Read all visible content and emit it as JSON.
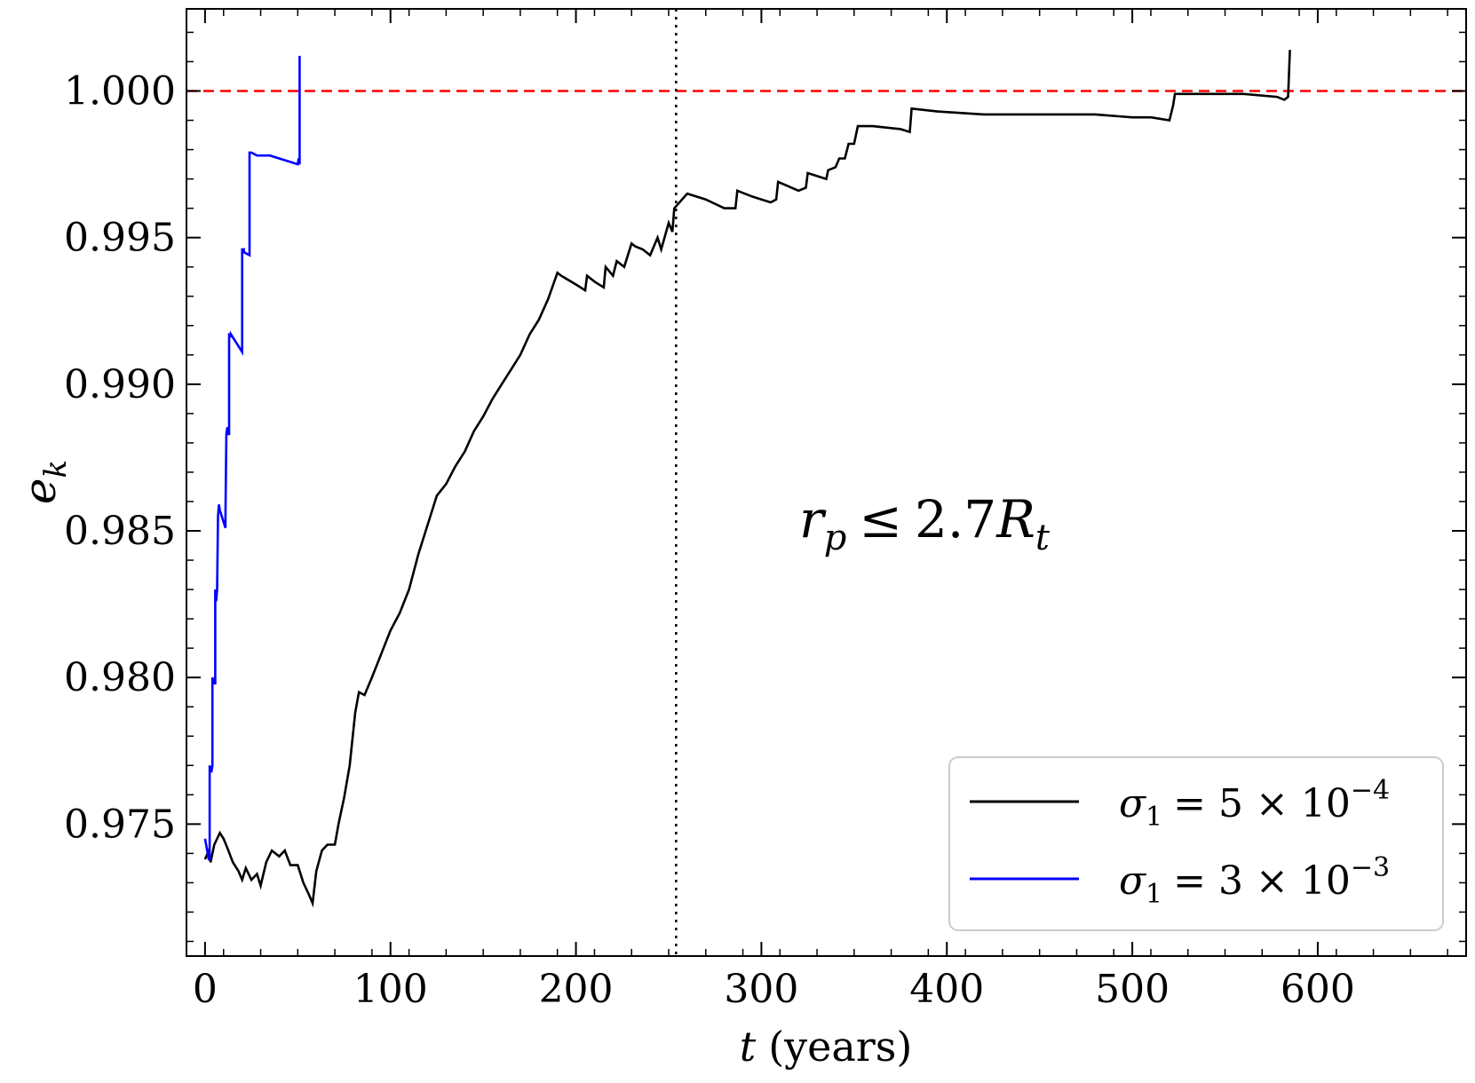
{
  "chart_data": {
    "type": "line",
    "xlabel_var": "t",
    "xlabel_unit": "(years)",
    "ylabel": "e",
    "ylabel_sub": "k",
    "xlim": [
      -10,
      680
    ],
    "ylim": [
      0.9705,
      1.0028
    ],
    "xticks": [
      0,
      100,
      200,
      300,
      400,
      500,
      600
    ],
    "xtick_labels": [
      "0",
      "100",
      "200",
      "300",
      "400",
      "500",
      "600"
    ],
    "yticks": [
      0.975,
      0.98,
      0.985,
      0.99,
      0.995,
      1.0
    ],
    "ytick_labels": [
      "0.975",
      "0.980",
      "0.985",
      "0.990",
      "0.995",
      "1.000"
    ],
    "reference_lines": [
      {
        "orientation": "horizontal",
        "value": 1.0,
        "color": "#ff0000",
        "style": "dashed"
      },
      {
        "orientation": "vertical",
        "value": 254,
        "color": "#000000",
        "style": "dotted"
      }
    ],
    "annotation": {
      "r": "r",
      "r_sub": "p",
      "relation": "≤",
      "coef": "2.7",
      "R": "R",
      "R_sub": "t"
    },
    "legend_position": "lower-right",
    "series": [
      {
        "name": "σ1 = 5 × 10^-4",
        "legend": {
          "sigma": "σ",
          "sub": "1",
          "eq": "= 5 × 10",
          "exp": "−4"
        },
        "color": "#000000",
        "x": [
          0,
          2,
          3,
          5,
          8,
          10,
          12,
          15,
          18,
          20,
          22,
          25,
          28,
          30,
          33,
          36,
          40,
          43,
          46,
          50,
          53,
          56,
          58,
          60,
          63,
          66,
          70,
          72,
          75,
          78,
          81,
          83,
          86,
          90,
          95,
          100,
          105,
          110,
          115,
          120,
          125,
          130,
          135,
          140,
          145,
          150,
          155,
          160,
          165,
          170,
          175,
          180,
          185,
          190,
          192,
          200,
          205,
          206,
          210,
          215,
          216,
          220,
          222,
          226,
          230,
          232,
          236,
          240,
          244,
          246,
          250,
          252,
          253,
          260,
          270,
          280,
          286,
          287,
          295,
          305,
          308,
          309,
          320,
          324,
          325,
          335,
          336,
          340,
          342,
          345,
          347,
          350,
          352,
          360,
          375,
          380,
          381,
          395,
          420,
          450,
          480,
          500,
          510,
          520,
          522,
          523,
          540,
          560,
          578,
          582,
          584,
          585
        ],
        "values": [
          0.9738,
          0.9741,
          0.9737,
          0.9743,
          0.9747,
          0.9745,
          0.9742,
          0.9737,
          0.9734,
          0.9731,
          0.9735,
          0.9731,
          0.9733,
          0.9729,
          0.9737,
          0.9741,
          0.9739,
          0.9741,
          0.9736,
          0.9736,
          0.973,
          0.9726,
          0.9723,
          0.9734,
          0.9741,
          0.9743,
          0.9743,
          0.975,
          0.9759,
          0.977,
          0.9788,
          0.9795,
          0.9794,
          0.98,
          0.9808,
          0.9816,
          0.9822,
          0.983,
          0.9842,
          0.9852,
          0.9862,
          0.9866,
          0.9872,
          0.9877,
          0.9884,
          0.9889,
          0.9895,
          0.99,
          0.9905,
          0.991,
          0.9917,
          0.9922,
          0.9929,
          0.9938,
          0.9937,
          0.9934,
          0.9932,
          0.9937,
          0.9935,
          0.9933,
          0.994,
          0.9937,
          0.9942,
          0.994,
          0.9948,
          0.9947,
          0.9946,
          0.9944,
          0.995,
          0.9946,
          0.9955,
          0.9952,
          0.996,
          0.9965,
          0.9963,
          0.996,
          0.996,
          0.9966,
          0.9964,
          0.9962,
          0.9963,
          0.9969,
          0.9966,
          0.9967,
          0.9972,
          0.997,
          0.9973,
          0.9974,
          0.9977,
          0.9977,
          0.9982,
          0.9982,
          0.9988,
          0.9988,
          0.9987,
          0.9986,
          0.9994,
          0.9993,
          0.9992,
          0.9992,
          0.9992,
          0.9991,
          0.9991,
          0.999,
          0.9995,
          0.9999,
          0.9999,
          0.9999,
          0.9998,
          0.9997,
          0.9998,
          1.0014
        ]
      },
      {
        "name": "σ1 = 3 × 10^-3",
        "legend": {
          "sigma": "σ",
          "sub": "1",
          "eq": "= 3 × 10",
          "exp": "−3"
        },
        "color": "#0000ff",
        "x": [
          0,
          2,
          2.5,
          2.5,
          3,
          3.5,
          4,
          4,
          5,
          5.5,
          5.5,
          6,
          6,
          6.5,
          7,
          7.5,
          8,
          11,
          11,
          11.5,
          11.5,
          12,
          12.5,
          12.5,
          13,
          13,
          13.5,
          14,
          14,
          15,
          20,
          20,
          21,
          21,
          24,
          24,
          25,
          25,
          28,
          35,
          40,
          45,
          50,
          50.5,
          51,
          51
        ],
        "values": [
          0.9745,
          0.9738,
          0.9738,
          0.977,
          0.9768,
          0.9768,
          0.977,
          0.98,
          0.9798,
          0.9798,
          0.983,
          0.9826,
          0.9826,
          0.983,
          0.9855,
          0.9859,
          0.9857,
          0.9851,
          0.9855,
          0.9883,
          0.9883,
          0.9885,
          0.9885,
          0.9883,
          0.9883,
          0.9917,
          0.9917,
          0.9916,
          0.9917,
          0.9916,
          0.9911,
          0.9946,
          0.9946,
          0.9945,
          0.9944,
          0.9979,
          0.9979,
          0.9979,
          0.9978,
          0.9978,
          0.9977,
          0.9976,
          0.9975,
          0.9977,
          0.9975,
          1.0012
        ]
      }
    ]
  }
}
